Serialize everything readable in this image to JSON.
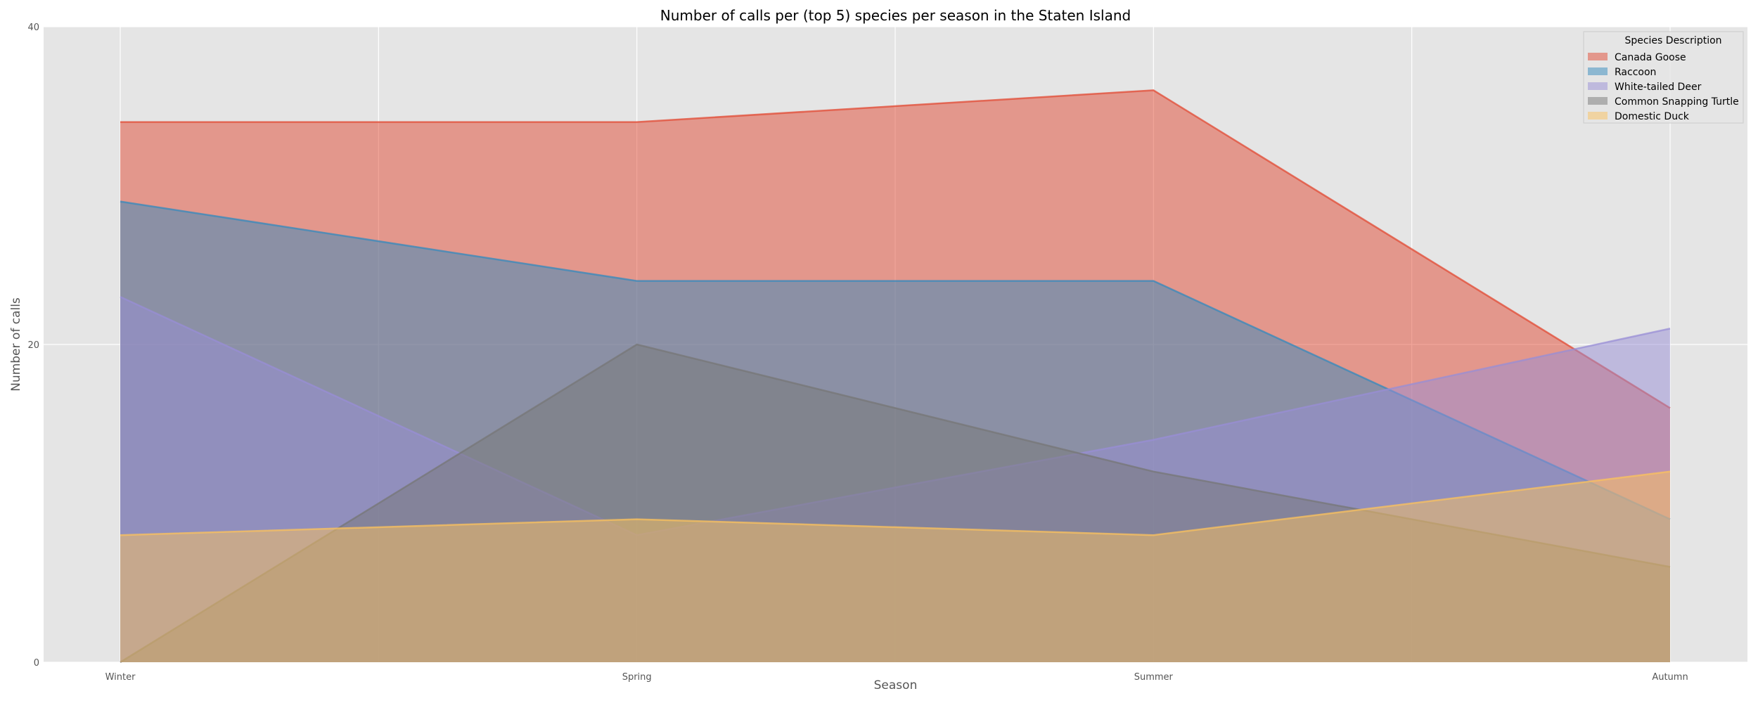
{
  "chart_data": {
    "type": "area",
    "title": "Number of calls per (top 5) species per season in the Staten Island",
    "xlabel": "Season",
    "ylabel": "Number of calls",
    "categories": [
      "Winter",
      "Spring",
      "Summer",
      "Autumn"
    ],
    "ylim": [
      0,
      40
    ],
    "yticks": [
      0,
      20,
      40
    ],
    "grid": true,
    "stacked": false,
    "legend": {
      "title": "Species Description",
      "placement": "top-right"
    },
    "series": [
      {
        "name": "Canada Goose",
        "values": [
          34,
          34,
          36,
          16
        ],
        "color": "#E24A33"
      },
      {
        "name": "Raccoon",
        "values": [
          29,
          24,
          24,
          9
        ],
        "color": "#348ABD"
      },
      {
        "name": "White-tailed Deer",
        "values": [
          23,
          8,
          14,
          21
        ],
        "color": "#988ED5"
      },
      {
        "name": "Common Snapping Turtle",
        "values": [
          0,
          20,
          12,
          6
        ],
        "color": "#777777"
      },
      {
        "name": "Domestic Duck",
        "values": [
          8,
          9,
          8,
          12
        ],
        "color": "#FBC15E"
      }
    ],
    "fill_opacity": 0.5,
    "plot_background": "#E5E5E5",
    "grid_color": "#FFFFFF"
  }
}
